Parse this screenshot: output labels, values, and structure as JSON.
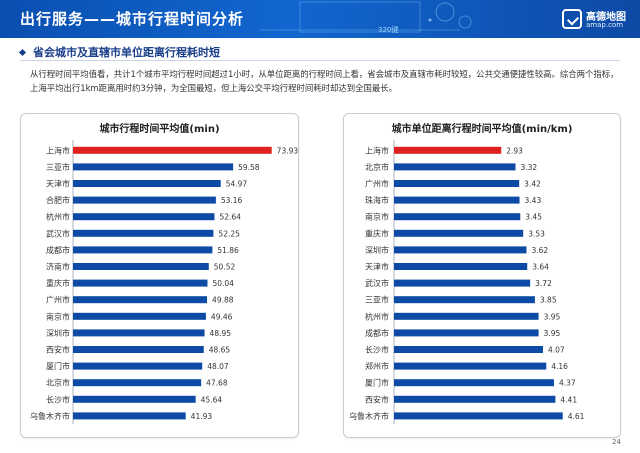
{
  "header": {
    "title": "出行服务——城市行程时间分析",
    "tag": "320键",
    "logo": {
      "name": "高德地图",
      "url": "amap.com"
    }
  },
  "colors": {
    "highlight": "#e0201e",
    "bar": "#0d4aa5",
    "header": "#1266cf"
  },
  "section_title": "省会城市及直辖市单位距离行程耗时短",
  "intro": "从行程时间平均值看，共计1个城市平均行程时间超过1小时，从单位距离的行程时间上看，省会城市及直辖市耗时较短，公共交通便捷性较高。综合两个指标，上海平均出行1km距离用时约3分钟，为全国最短，但上海公交平均行程时间耗时却达到全国最长。",
  "page_number": "24",
  "chart_data": [
    {
      "type": "bar",
      "orientation": "horizontal",
      "title": "城市行程时间平均值(min)",
      "categories": [
        "上海市",
        "三亚市",
        "天津市",
        "合肥市",
        "杭州市",
        "武汉市",
        "成都市",
        "济南市",
        "重庆市",
        "广州市",
        "南京市",
        "深圳市",
        "西安市",
        "厦门市",
        "北京市",
        "长沙市",
        "乌鲁木齐市"
      ],
      "value_labels": [
        "73.93",
        "59.58",
        "54.97",
        "53.16",
        "52.64",
        "52.25",
        "51.86",
        "50.52",
        "50.04",
        "49.88",
        "49.46",
        "48.95",
        "48.65",
        "48.07",
        "47.68",
        "45.64",
        "41.93"
      ],
      "values": [
        73.93,
        59.58,
        54.97,
        53.16,
        52.64,
        52.25,
        51.86,
        50.52,
        50.04,
        49.88,
        49.46,
        48.95,
        48.65,
        48.07,
        47.68,
        45.64,
        41.93
      ],
      "highlight_index": 0,
      "xlim": [
        0,
        80
      ],
      "grid": false,
      "legend": "none"
    },
    {
      "type": "bar",
      "orientation": "horizontal",
      "title": "城市单位距离行程时间平均值(min/km)",
      "categories": [
        "上海市",
        "北京市",
        "广州市",
        "珠海市",
        "南京市",
        "重庆市",
        "深圳市",
        "天津市",
        "武汉市",
        "三亚市",
        "杭州市",
        "成都市",
        "长沙市",
        "郑州市",
        "厦门市",
        "西安市",
        "乌鲁木齐市"
      ],
      "value_labels": [
        "2.93",
        "3.32",
        "3.42",
        "3.43",
        "3.45",
        "3.53",
        "3.62",
        "3.64",
        "3.72",
        "3.85",
        "3.95",
        "3.95",
        "4.07",
        "4.16",
        "4.37",
        "4.41",
        "4.61"
      ],
      "values": [
        2.93,
        3.32,
        3.42,
        3.43,
        3.45,
        3.53,
        3.62,
        3.64,
        3.72,
        3.85,
        3.95,
        3.95,
        4.07,
        4.16,
        4.37,
        4.41,
        4.61
      ],
      "highlight_index": 0,
      "xlim": [
        0,
        5
      ],
      "grid": false,
      "legend": "none"
    }
  ]
}
